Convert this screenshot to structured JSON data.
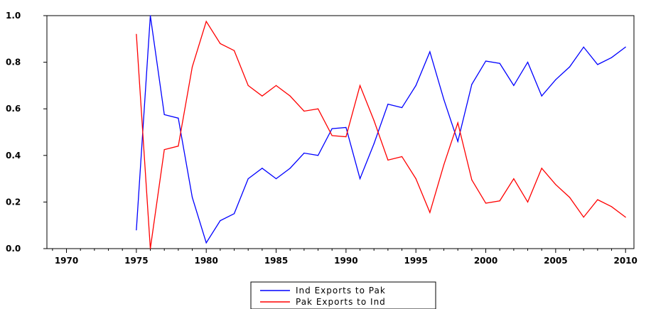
{
  "chart_data": {
    "type": "line",
    "title": "",
    "xlabel": "",
    "ylabel": "",
    "xlim": [
      1968.6,
      2010.6
    ],
    "ylim": [
      0.0,
      1.0
    ],
    "x_ticks": [
      1970,
      1975,
      1980,
      1985,
      1990,
      1995,
      2000,
      2005,
      2010
    ],
    "x_tick_labels": [
      "1970",
      "1975",
      "1980",
      "1985",
      "1990",
      "1995",
      "2000",
      "2005",
      "2010"
    ],
    "y_ticks": [
      0.0,
      0.2,
      0.4,
      0.6,
      0.8,
      1.0
    ],
    "y_tick_labels": [
      "0.0",
      "0.2",
      "0.4",
      "0.6",
      "0.8",
      "1.0"
    ],
    "grid": false,
    "legend_position": "bottom-center",
    "x": [
      1975,
      1976,
      1977,
      1978,
      1979,
      1980,
      1981,
      1982,
      1983,
      1984,
      1985,
      1986,
      1987,
      1988,
      1989,
      1990,
      1991,
      1992,
      1993,
      1994,
      1995,
      1996,
      1997,
      1998,
      1999,
      2000,
      2001,
      2002,
      2003,
      2004,
      2005,
      2006,
      2007,
      2008,
      2009,
      2010
    ],
    "series": [
      {
        "name": "Ind Exports to Pak",
        "color": "#0000ff",
        "values": [
          0.08,
          1.0,
          0.575,
          0.56,
          0.22,
          0.025,
          0.12,
          0.15,
          0.3,
          0.345,
          0.3,
          0.345,
          0.41,
          0.4,
          0.515,
          0.52,
          0.3,
          0.45,
          0.62,
          0.605,
          0.7,
          0.845,
          0.64,
          0.46,
          0.705,
          0.805,
          0.795,
          0.7,
          0.8,
          0.655,
          0.725,
          0.78,
          0.865,
          0.79,
          0.82,
          0.865
        ]
      },
      {
        "name": "Pak Exports to Ind",
        "color": "#ff0000",
        "values": [
          0.92,
          0.0,
          0.425,
          0.44,
          0.78,
          0.975,
          0.88,
          0.85,
          0.7,
          0.655,
          0.7,
          0.655,
          0.59,
          0.6,
          0.485,
          0.48,
          0.7,
          0.55,
          0.38,
          0.395,
          0.3,
          0.155,
          0.36,
          0.54,
          0.295,
          0.195,
          0.205,
          0.3,
          0.2,
          0.345,
          0.275,
          0.22,
          0.135,
          0.21,
          0.18,
          0.135
        ]
      }
    ]
  }
}
